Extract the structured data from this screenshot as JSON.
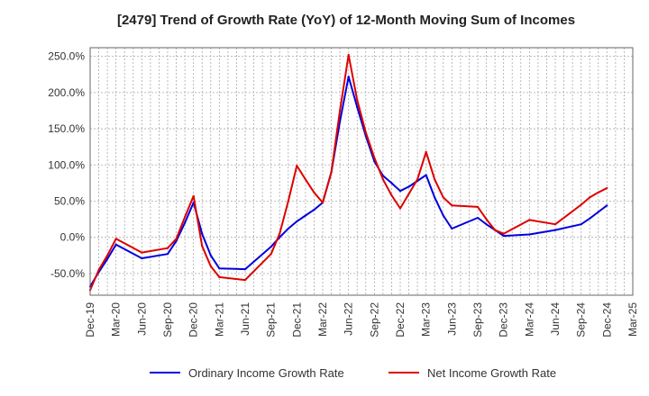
{
  "chart_data": {
    "type": "line",
    "title": "[2479]  Trend of Growth Rate (YoY) of 12-Month Moving Sum of Incomes",
    "xlabel": "",
    "ylabel": "",
    "x_tick_labels": [
      "Dec-19",
      "Mar-20",
      "Jun-20",
      "Sep-20",
      "Dec-20",
      "Mar-21",
      "Jun-21",
      "Sep-21",
      "Dec-21",
      "Mar-22",
      "Jun-22",
      "Sep-22",
      "Dec-22",
      "Mar-23",
      "Jun-23",
      "Sep-23",
      "Dec-23",
      "Mar-24",
      "Jun-24",
      "Sep-24",
      "Dec-24",
      "Mar-25"
    ],
    "y_tick_labels": [
      "250.0%",
      "200.0%",
      "150.0%",
      "100.0%",
      "50.0%",
      "0.0%",
      "-50.0%"
    ],
    "ylim": [
      -80,
      262
    ],
    "grid": true,
    "legend_position": "bottom",
    "x": [
      "Dec-19",
      "Jan-20",
      "Feb-20",
      "Mar-20",
      "Jun-20",
      "Sep-20",
      "Oct-20",
      "Nov-20",
      "Dec-20",
      "Jan-21",
      "Feb-21",
      "Mar-21",
      "Jun-21",
      "Sep-21",
      "Oct-21",
      "Nov-21",
      "Dec-21",
      "Jan-22",
      "Feb-22",
      "Mar-22",
      "Apr-22",
      "May-22",
      "Jun-22",
      "Jul-22",
      "Aug-22",
      "Sep-22",
      "Oct-22",
      "Nov-22",
      "Dec-22",
      "Jan-23",
      "Feb-23",
      "Mar-23",
      "Apr-23",
      "May-23",
      "Jun-23",
      "Sep-23",
      "Oct-23",
      "Nov-23",
      "Dec-23",
      "Mar-24",
      "Jun-24",
      "Sep-24",
      "Oct-24",
      "Nov-24",
      "Dec-24"
    ],
    "series": [
      {
        "name": "Ordinary Income Growth Rate",
        "color": "#0000dd",
        "values": [
          -68,
          -48,
          -30,
          -10,
          -29,
          -23,
          -5,
          20,
          48,
          5,
          -25,
          -43,
          -44,
          -13,
          0,
          12,
          22,
          30,
          38,
          48,
          90,
          160,
          222,
          180,
          140,
          105,
          85,
          75,
          64,
          70,
          78,
          86,
          55,
          30,
          12,
          27,
          18,
          10,
          2,
          4,
          10,
          18,
          26,
          35,
          44
        ]
      },
      {
        "name": "Net Income Growth Rate",
        "color": "#dd0000",
        "values": [
          -73,
          -45,
          -25,
          -2,
          -21,
          -15,
          -2,
          28,
          57,
          -12,
          -40,
          -55,
          -59,
          -23,
          5,
          50,
          99,
          80,
          62,
          48,
          90,
          175,
          252,
          190,
          145,
          110,
          80,
          58,
          40,
          60,
          80,
          118,
          80,
          55,
          44,
          42,
          25,
          10,
          5,
          24,
          18,
          45,
          55,
          62,
          68
        ]
      }
    ]
  }
}
